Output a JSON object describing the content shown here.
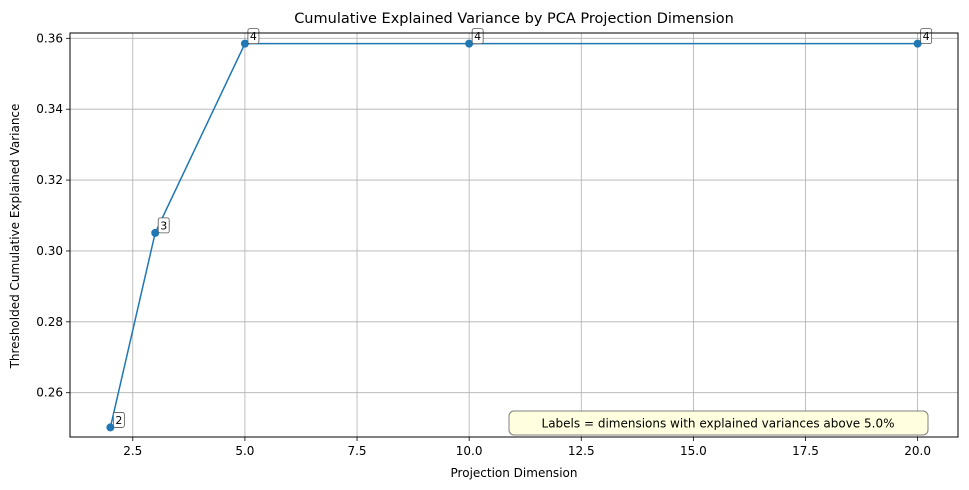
{
  "chart_data": {
    "type": "line",
    "title": "Cumulative Explained Variance by PCA Projection Dimension",
    "xlabel": "Projection Dimension",
    "ylabel": "Thresholded Cumulative Explained Variance",
    "xlim": [
      1.1,
      20.9
    ],
    "ylim": [
      0.2475,
      0.3615
    ],
    "xticks": [
      2.5,
      5.0,
      7.5,
      10.0,
      12.5,
      15.0,
      17.5,
      20.0
    ],
    "xtick_labels": [
      "2.5",
      "5.0",
      "7.5",
      "10.0",
      "12.5",
      "15.0",
      "17.5",
      "20.0"
    ],
    "yticks": [
      0.26,
      0.28,
      0.3,
      0.32,
      0.34,
      0.36
    ],
    "ytick_labels": [
      "0.26",
      "0.28",
      "0.30",
      "0.32",
      "0.34",
      "0.36"
    ],
    "grid": true,
    "series": [
      {
        "x": [
          2,
          3,
          5,
          10,
          20
        ],
        "y": [
          0.2502,
          0.3051,
          0.3585,
          0.3585,
          0.3585
        ],
        "point_labels": [
          "2",
          "3",
          "4",
          "4",
          "4"
        ],
        "color": "#1f77b4",
        "marker": "circle"
      }
    ],
    "annotation": {
      "text": "Labels = dimensions with explained variances above 5.0%",
      "placement": "bottom-right",
      "background": "#ffffe0"
    }
  }
}
